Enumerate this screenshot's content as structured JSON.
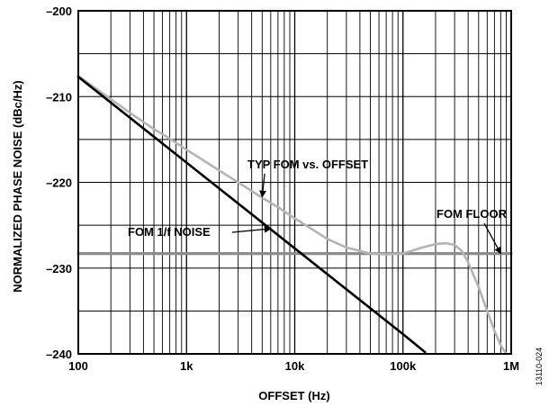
{
  "chart_data": {
    "type": "line",
    "xlabel": "OFFSET (Hz)",
    "ylabel": "NORMALIZED PHASE NOISE (dBc/Hz)",
    "x_scale": "log",
    "xlim": [
      100,
      1000000
    ],
    "ylim": [
      -240,
      -200
    ],
    "x_ticks": [
      100,
      1000,
      10000,
      100000,
      1000000
    ],
    "x_tick_labels": [
      "100",
      "1k",
      "10k",
      "100k",
      "1M"
    ],
    "y_ticks": [
      -200,
      -210,
      -220,
      -230,
      -240
    ],
    "y_tick_labels": [
      "–200",
      "–210",
      "–220",
      "–230",
      "–240"
    ],
    "grid": true,
    "series": [
      {
        "name": "FOM 1/f NOISE",
        "color": "#000000",
        "x": [
          100,
          1000,
          10000,
          100000,
          160000
        ],
        "y": [
          -207.7,
          -217.7,
          -227.7,
          -237.7,
          -239.8
        ]
      },
      {
        "name": "TYP FOM vs. OFFSET",
        "color": "#b4b4b4",
        "x": [
          100,
          150,
          200,
          300,
          500,
          700,
          1000,
          1500,
          2000,
          3000,
          5000,
          7000,
          10000,
          15000,
          20000,
          30000,
          50000,
          70000,
          100000,
          150000,
          200000,
          250000,
          300000,
          350000,
          400000,
          500000,
          600000,
          700000,
          800000,
          900000
        ],
        "y": [
          -207.6,
          -209.2,
          -210.3,
          -211.9,
          -213.8,
          -214.9,
          -216.2,
          -217.6,
          -218.6,
          -220.0,
          -221.8,
          -222.9,
          -224.2,
          -225.6,
          -226.6,
          -227.6,
          -228.3,
          -228.4,
          -228.3,
          -227.6,
          -227.2,
          -227.1,
          -227.3,
          -228.0,
          -229.3,
          -232.2,
          -235.0,
          -237.3,
          -239.0,
          -240.0
        ]
      },
      {
        "name": "FOM FLOOR",
        "color": "#8c8c8c",
        "x": [
          100,
          1000000
        ],
        "y": [
          -228.3,
          -228.3
        ]
      }
    ],
    "annotations": [
      {
        "text": "TYP FOM vs. OFFSET",
        "target_x": 5000,
        "target_y": -221.7
      },
      {
        "text": "FOM 1/f NOISE",
        "target_x": 6000,
        "target_y": -225.4
      },
      {
        "text": "FOM FLOOR",
        "target_x": 800000,
        "target_y": -228.3
      }
    ],
    "figure_id": "13110-024"
  }
}
